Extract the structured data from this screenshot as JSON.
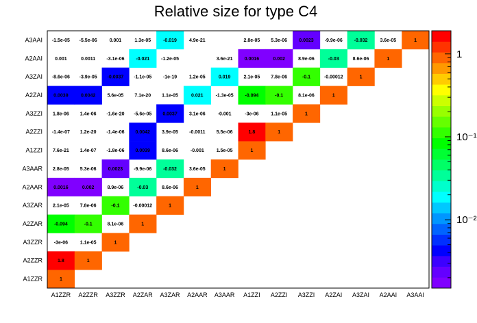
{
  "chart_data": {
    "type": "heatmap",
    "title": "Relative size for type C4",
    "x_labels": [
      "A1ZZR",
      "A2ZZR",
      "A3ZZR",
      "A2ZAR",
      "A3ZAR",
      "A2AAR",
      "A3AAR",
      "A1ZZI",
      "A2ZZI",
      "A3ZZI",
      "A2ZAI",
      "A3ZAI",
      "A2AAI",
      "A3AAI"
    ],
    "y_labels": [
      "A1ZZR",
      "A2ZZR",
      "A3ZZR",
      "A2ZAR",
      "A3ZAR",
      "A2AAR",
      "A3AAR",
      "A1ZZI",
      "A2ZZI",
      "A3ZZI",
      "A2ZAI",
      "A3ZAI",
      "A2AAI",
      "A3AAI"
    ],
    "cells": [
      {
        "x": 0,
        "y": 0,
        "label": "1",
        "value": 1
      },
      {
        "x": 0,
        "y": 1,
        "label": "1.8",
        "value": 1.8
      },
      {
        "x": 1,
        "y": 1,
        "label": "1",
        "value": 1
      },
      {
        "x": 0,
        "y": 2,
        "label": "-3e-06",
        "value": -3e-06
      },
      {
        "x": 1,
        "y": 2,
        "label": "1.1e-05",
        "value": 1.1e-05
      },
      {
        "x": 2,
        "y": 2,
        "label": "1",
        "value": 1
      },
      {
        "x": 0,
        "y": 3,
        "label": "-0.094",
        "value": -0.094
      },
      {
        "x": 1,
        "y": 3,
        "label": "-0.1",
        "value": -0.1
      },
      {
        "x": 2,
        "y": 3,
        "label": "8.1e-06",
        "value": 8.1e-06
      },
      {
        "x": 3,
        "y": 3,
        "label": "1",
        "value": 1
      },
      {
        "x": 0,
        "y": 4,
        "label": "2.1e-05",
        "value": 2.1e-05
      },
      {
        "x": 1,
        "y": 4,
        "label": "7.8e-06",
        "value": 7.8e-06
      },
      {
        "x": 2,
        "y": 4,
        "label": "-0.1",
        "value": -0.1
      },
      {
        "x": 3,
        "y": 4,
        "label": "-0.00012",
        "value": -0.00012
      },
      {
        "x": 4,
        "y": 4,
        "label": "1",
        "value": 1
      },
      {
        "x": 0,
        "y": 5,
        "label": "0.0016",
        "value": 0.0016
      },
      {
        "x": 1,
        "y": 5,
        "label": "0.002",
        "value": 0.002
      },
      {
        "x": 2,
        "y": 5,
        "label": "8.9e-06",
        "value": 8.9e-06
      },
      {
        "x": 3,
        "y": 5,
        "label": "-0.03",
        "value": -0.03
      },
      {
        "x": 4,
        "y": 5,
        "label": "8.6e-06",
        "value": 8.6e-06
      },
      {
        "x": 5,
        "y": 5,
        "label": "1",
        "value": 1
      },
      {
        "x": 0,
        "y": 6,
        "label": "2.8e-05",
        "value": 2.8e-05
      },
      {
        "x": 1,
        "y": 6,
        "label": "5.3e-06",
        "value": 5.3e-06
      },
      {
        "x": 2,
        "y": 6,
        "label": "0.0023",
        "value": 0.0023
      },
      {
        "x": 3,
        "y": 6,
        "label": "-9.9e-06",
        "value": -9.9e-06
      },
      {
        "x": 4,
        "y": 6,
        "label": "-0.032",
        "value": -0.032
      },
      {
        "x": 5,
        "y": 6,
        "label": "3.6e-05",
        "value": 3.6e-05
      },
      {
        "x": 6,
        "y": 6,
        "label": "1",
        "value": 1
      },
      {
        "x": 0,
        "y": 7,
        "label": "7.6e-21",
        "value": 7.6e-21
      },
      {
        "x": 1,
        "y": 7,
        "label": "1.4e-07",
        "value": 1.4e-07
      },
      {
        "x": 2,
        "y": 7,
        "label": "-1.8e-06",
        "value": -1.8e-06
      },
      {
        "x": 3,
        "y": 7,
        "label": "0.0039",
        "value": 0.0039
      },
      {
        "x": 4,
        "y": 7,
        "label": "8.6e-06",
        "value": 8.6e-06
      },
      {
        "x": 5,
        "y": 7,
        "label": "-0.001",
        "value": -0.001
      },
      {
        "x": 6,
        "y": 7,
        "label": "1.5e-05",
        "value": 1.5e-05
      },
      {
        "x": 7,
        "y": 7,
        "label": "1",
        "value": 1
      },
      {
        "x": 0,
        "y": 8,
        "label": "-1.4e-07",
        "value": -1.4e-07
      },
      {
        "x": 1,
        "y": 8,
        "label": "1.2e-20",
        "value": 1.2e-20
      },
      {
        "x": 2,
        "y": 8,
        "label": "-1.4e-06",
        "value": -1.4e-06
      },
      {
        "x": 3,
        "y": 8,
        "label": "0.0042",
        "value": 0.0042
      },
      {
        "x": 4,
        "y": 8,
        "label": "3.9e-05",
        "value": 3.9e-05
      },
      {
        "x": 5,
        "y": 8,
        "label": "-0.0011",
        "value": -0.0011
      },
      {
        "x": 6,
        "y": 8,
        "label": "5.5e-06",
        "value": 5.5e-06
      },
      {
        "x": 7,
        "y": 8,
        "label": "1.8",
        "value": 1.8
      },
      {
        "x": 8,
        "y": 8,
        "label": "1",
        "value": 1
      },
      {
        "x": 0,
        "y": 9,
        "label": "1.8e-06",
        "value": 1.8e-06
      },
      {
        "x": 1,
        "y": 9,
        "label": "1.4e-06",
        "value": 1.4e-06
      },
      {
        "x": 2,
        "y": 9,
        "label": "-1.6e-20",
        "value": -1.6e-20
      },
      {
        "x": 3,
        "y": 9,
        "label": "-5.6e-05",
        "value": -5.6e-05
      },
      {
        "x": 4,
        "y": 9,
        "label": "0.0037",
        "value": 0.0037
      },
      {
        "x": 5,
        "y": 9,
        "label": "3.1e-06",
        "value": 3.1e-06
      },
      {
        "x": 6,
        "y": 9,
        "label": "-0.001",
        "value": -0.001
      },
      {
        "x": 7,
        "y": 9,
        "label": "-3e-06",
        "value": -3e-06
      },
      {
        "x": 8,
        "y": 9,
        "label": "1.1e-05",
        "value": 1.1e-05
      },
      {
        "x": 9,
        "y": 9,
        "label": "1",
        "value": 1
      },
      {
        "x": 0,
        "y": 10,
        "label": "0.0039",
        "value": 0.0039
      },
      {
        "x": 1,
        "y": 10,
        "label": "0.0042",
        "value": 0.0042
      },
      {
        "x": 2,
        "y": 10,
        "label": "5.6e-05",
        "value": 5.6e-05
      },
      {
        "x": 3,
        "y": 10,
        "label": "7.1e-20",
        "value": 7.1e-20
      },
      {
        "x": 4,
        "y": 10,
        "label": "1.1e-05",
        "value": 1.1e-05
      },
      {
        "x": 5,
        "y": 10,
        "label": "0.021",
        "value": 0.021
      },
      {
        "x": 6,
        "y": 10,
        "label": "-1.3e-05",
        "value": -1.3e-05
      },
      {
        "x": 7,
        "y": 10,
        "label": "-0.094",
        "value": -0.094
      },
      {
        "x": 8,
        "y": 10,
        "label": "-0.1",
        "value": -0.1
      },
      {
        "x": 9,
        "y": 10,
        "label": "8.1e-06",
        "value": 8.1e-06
      },
      {
        "x": 10,
        "y": 10,
        "label": "1",
        "value": 1
      },
      {
        "x": 0,
        "y": 11,
        "label": "-8.6e-06",
        "value": -8.6e-06
      },
      {
        "x": 1,
        "y": 11,
        "label": "-3.9e-05",
        "value": -3.9e-05
      },
      {
        "x": 2,
        "y": 11,
        "label": "-0.0037",
        "value": -0.0037
      },
      {
        "x": 3,
        "y": 11,
        "label": "-1.1e-05",
        "value": -1.1e-05
      },
      {
        "x": 4,
        "y": 11,
        "label": "-1e-19",
        "value": -1e-19
      },
      {
        "x": 5,
        "y": 11,
        "label": "1.2e-05",
        "value": 1.2e-05
      },
      {
        "x": 6,
        "y": 11,
        "label": "0.019",
        "value": 0.019
      },
      {
        "x": 7,
        "y": 11,
        "label": "2.1e-05",
        "value": 2.1e-05
      },
      {
        "x": 8,
        "y": 11,
        "label": "7.8e-06",
        "value": 7.8e-06
      },
      {
        "x": 9,
        "y": 11,
        "label": "-0.1",
        "value": -0.1
      },
      {
        "x": 10,
        "y": 11,
        "label": "-0.00012",
        "value": -0.00012
      },
      {
        "x": 11,
        "y": 11,
        "label": "1",
        "value": 1
      },
      {
        "x": 0,
        "y": 12,
        "label": "0.001",
        "value": 0.001
      },
      {
        "x": 1,
        "y": 12,
        "label": "0.0011",
        "value": 0.0011
      },
      {
        "x": 2,
        "y": 12,
        "label": "-3.1e-06",
        "value": -3.1e-06
      },
      {
        "x": 3,
        "y": 12,
        "label": "-0.021",
        "value": -0.021
      },
      {
        "x": 4,
        "y": 12,
        "label": "-1.2e-05",
        "value": -1.2e-05
      },
      {
        "x": 6,
        "y": 12,
        "label": "3.6e-21",
        "value": 3.6e-21
      },
      {
        "x": 7,
        "y": 12,
        "label": "0.0016",
        "value": 0.0016
      },
      {
        "x": 8,
        "y": 12,
        "label": "0.002",
        "value": 0.002
      },
      {
        "x": 9,
        "y": 12,
        "label": "8.9e-06",
        "value": 8.9e-06
      },
      {
        "x": 10,
        "y": 12,
        "label": "-0.03",
        "value": -0.03
      },
      {
        "x": 11,
        "y": 12,
        "label": "8.6e-06",
        "value": 8.6e-06
      },
      {
        "x": 12,
        "y": 12,
        "label": "1",
        "value": 1
      },
      {
        "x": 0,
        "y": 13,
        "label": "-1.5e-05",
        "value": -1.5e-05
      },
      {
        "x": 1,
        "y": 13,
        "label": "-5.5e-06",
        "value": -5.5e-06
      },
      {
        "x": 2,
        "y": 13,
        "label": "0.001",
        "value": 0.001
      },
      {
        "x": 3,
        "y": 13,
        "label": "1.3e-05",
        "value": 1.3e-05
      },
      {
        "x": 4,
        "y": 13,
        "label": "-0.019",
        "value": -0.019
      },
      {
        "x": 5,
        "y": 13,
        "label": "4.9e-21",
        "value": 4.9e-21
      },
      {
        "x": 7,
        "y": 13,
        "label": "2.8e-05",
        "value": 2.8e-05
      },
      {
        "x": 8,
        "y": 13,
        "label": "5.3e-06",
        "value": 5.3e-06
      },
      {
        "x": 9,
        "y": 13,
        "label": "0.0023",
        "value": 0.0023
      },
      {
        "x": 10,
        "y": 13,
        "label": "-9.9e-06",
        "value": -9.9e-06
      },
      {
        "x": 11,
        "y": 13,
        "label": "-0.032",
        "value": -0.032
      },
      {
        "x": 12,
        "y": 13,
        "label": "3.6e-05",
        "value": 3.6e-05
      },
      {
        "x": 13,
        "y": 13,
        "label": "1",
        "value": 1
      }
    ],
    "color_scale": {
      "type": "log",
      "min": 0.0015,
      "max": 1.9,
      "tick_values": [
        1,
        0.1,
        0.01
      ],
      "tick_labels": [
        "1",
        "10⁻¹",
        "10⁻²"
      ],
      "palette": [
        "#8000ff",
        "#6400ff",
        "#3c00ff",
        "#0000ff",
        "#0030ff",
        "#0064ff",
        "#0096ff",
        "#00c8ff",
        "#00ffff",
        "#00ffcc",
        "#00ff99",
        "#00ff66",
        "#00ff33",
        "#00ff00",
        "#33ff00",
        "#66ff00",
        "#99ff00",
        "#ccff00",
        "#ffff00",
        "#ffcc00",
        "#ff9900",
        "#ff6600",
        "#ff3300",
        "#ff0000"
      ],
      "position": "right"
    }
  }
}
